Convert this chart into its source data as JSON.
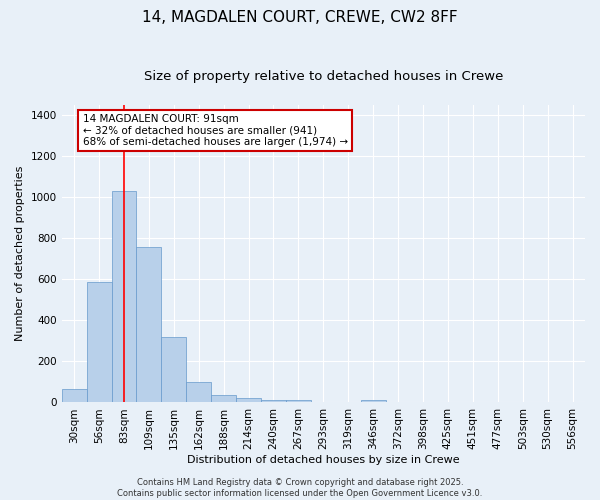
{
  "title": "14, MAGDALEN COURT, CREWE, CW2 8FF",
  "subtitle": "Size of property relative to detached houses in Crewe",
  "xlabel": "Distribution of detached houses by size in Crewe",
  "ylabel": "Number of detached properties",
  "bin_labels": [
    "30sqm",
    "56sqm",
    "83sqm",
    "109sqm",
    "135sqm",
    "162sqm",
    "188sqm",
    "214sqm",
    "240sqm",
    "267sqm",
    "293sqm",
    "319sqm",
    "346sqm",
    "372sqm",
    "398sqm",
    "425sqm",
    "451sqm",
    "477sqm",
    "503sqm",
    "530sqm",
    "556sqm"
  ],
  "bar_values": [
    65,
    585,
    1030,
    760,
    320,
    100,
    35,
    22,
    12,
    10,
    0,
    0,
    12,
    0,
    0,
    0,
    0,
    0,
    0,
    0,
    0
  ],
  "bar_color": "#b8d0ea",
  "bar_edge_color": "#6699cc",
  "red_line_x": 2.0,
  "annotation_text": "14 MAGDALEN COURT: 91sqm\n← 32% of detached houses are smaller (941)\n68% of semi-detached houses are larger (1,974) →",
  "annotation_box_color": "#ffffff",
  "annotation_box_edge_color": "#cc0000",
  "ylim": [
    0,
    1450
  ],
  "yticks": [
    0,
    200,
    400,
    600,
    800,
    1000,
    1200,
    1400
  ],
  "background_color": "#e8f0f8",
  "grid_color": "#ffffff",
  "footer_text": "Contains HM Land Registry data © Crown copyright and database right 2025.\nContains public sector information licensed under the Open Government Licence v3.0.",
  "title_fontsize": 11,
  "subtitle_fontsize": 9.5,
  "axis_label_fontsize": 8,
  "tick_fontsize": 7.5,
  "annotation_fontsize": 7.5,
  "footer_fontsize": 6
}
